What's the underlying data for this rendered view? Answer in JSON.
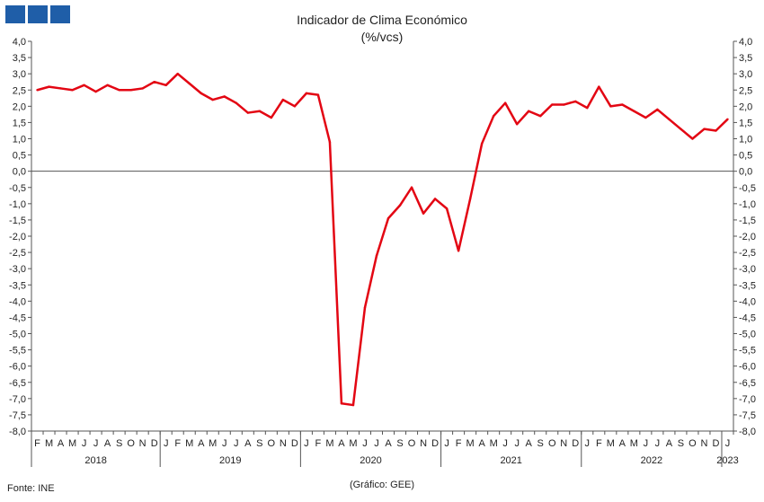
{
  "header": {
    "title": "Indicador de Clima Económico",
    "subtitle": "(%/vcs)"
  },
  "footer": {
    "source": "Fonte: INE",
    "credit": "(Gráfico: GEE)"
  },
  "logo": {
    "color": "#1f5ea8",
    "blocks": 3
  },
  "chart_data": {
    "type": "line",
    "title": "Indicador de Clima Económico",
    "subtitle": "(%/vcs)",
    "ylim": [
      -8,
      4
    ],
    "ytick_step": 0.5,
    "ytick_labels": [
      "4,0",
      "3,5",
      "3,0",
      "2,5",
      "2,0",
      "1,5",
      "1,0",
      "0,5",
      "0,0",
      "-0,5",
      "-1,0",
      "-1,5",
      "-2,0",
      "-2,5",
      "-3,0",
      "-3,5",
      "-4,0",
      "-4,5",
      "-5,0",
      "-5,5",
      "-6,0",
      "-6,5",
      "-7,0",
      "-7,5",
      "-8,0"
    ],
    "axes_right": true,
    "grid": false,
    "color": "#e30613",
    "month_labels": [
      "F",
      "M",
      "A",
      "M",
      "J",
      "J",
      "A",
      "S",
      "O",
      "N",
      "D",
      "J",
      "F",
      "M",
      "A",
      "M",
      "J",
      "J",
      "A",
      "S",
      "O",
      "N",
      "D",
      "J",
      "F",
      "M",
      "A",
      "M",
      "J",
      "J",
      "A",
      "S",
      "O",
      "N",
      "D",
      "J",
      "F",
      "M",
      "A",
      "M",
      "J",
      "J",
      "A",
      "S",
      "O",
      "N",
      "D",
      "J",
      "F",
      "M",
      "A",
      "M",
      "J",
      "J",
      "A",
      "S",
      "O",
      "N",
      "D",
      "J"
    ],
    "years": [
      {
        "label": "2018",
        "from": 0,
        "to": 10
      },
      {
        "label": "2019",
        "from": 11,
        "to": 22
      },
      {
        "label": "2020",
        "from": 23,
        "to": 34
      },
      {
        "label": "2021",
        "from": 35,
        "to": 46
      },
      {
        "label": "2022",
        "from": 47,
        "to": 58
      },
      {
        "label": "2023",
        "from": 59,
        "to": 59
      }
    ],
    "series": [
      {
        "values": [
          2.5,
          2.6,
          2.55,
          2.5,
          2.65,
          2.45,
          2.65,
          2.5,
          2.5,
          2.55,
          2.75,
          2.65,
          3.0,
          2.7,
          2.4,
          2.2,
          2.3,
          2.1,
          1.8,
          1.85,
          1.65,
          2.2,
          2.0,
          2.4,
          2.35,
          0.9,
          -7.15,
          -7.2,
          -4.2,
          -2.6,
          -1.45,
          -1.05,
          -0.5,
          -1.3,
          -0.85,
          -1.15,
          -2.45,
          -0.85,
          0.85,
          1.7,
          2.1,
          1.45,
          1.85,
          1.7,
          2.05,
          2.05,
          2.15,
          1.95,
          2.6,
          2.0,
          2.05,
          1.85,
          1.65,
          1.9,
          1.6,
          1.3,
          1.0,
          1.3,
          1.25,
          1.6
        ]
      }
    ]
  }
}
